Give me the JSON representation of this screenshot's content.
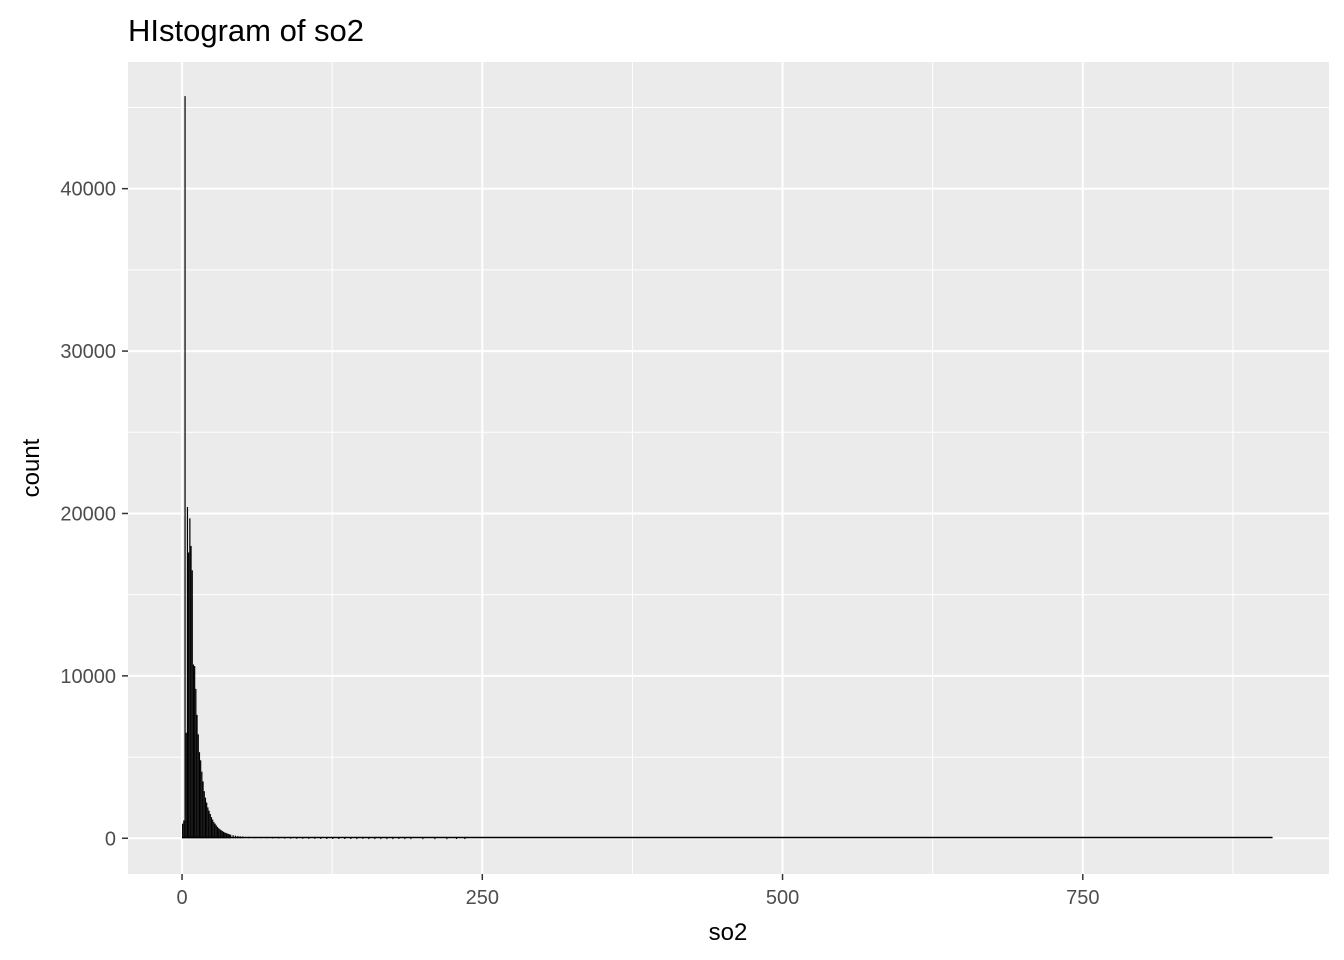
{
  "chart_data": {
    "type": "bar",
    "title": "HIstogram of so2",
    "xlabel": "so2",
    "ylabel": "count",
    "xlim": [
      -45,
      955
    ],
    "ylim": [
      -2200,
      47800
    ],
    "x_ticks": [
      0,
      250,
      500,
      750
    ],
    "x_tick_labels": [
      "0",
      "250",
      "500",
      "750"
    ],
    "y_ticks": [
      0,
      10000,
      20000,
      30000,
      40000
    ],
    "y_tick_labels": [
      "0",
      "10000",
      "20000",
      "30000",
      "40000"
    ],
    "grid": true,
    "legend": "none",
    "bin_width": 1,
    "data_range": [
      0,
      908
    ],
    "bins_x": [
      0,
      1,
      2,
      3,
      4,
      5,
      6,
      7,
      8,
      9,
      10,
      11,
      12,
      13,
      14,
      15,
      16,
      17,
      18,
      19,
      20,
      21,
      22,
      23,
      24,
      25,
      26,
      27,
      28,
      29,
      30,
      31,
      32,
      33,
      34,
      35,
      36,
      37,
      38,
      39,
      40,
      42,
      44,
      46,
      48,
      50,
      55,
      60,
      65,
      70,
      75,
      80,
      85,
      90,
      95,
      100,
      105,
      110,
      115,
      120,
      125,
      130,
      135,
      140,
      145,
      150,
      155,
      160,
      165,
      170,
      175,
      180,
      185,
      190,
      200,
      210,
      220,
      228,
      235
    ],
    "bins_count": [
      900,
      1100,
      45700,
      6500,
      20400,
      17600,
      19700,
      18000,
      16500,
      10700,
      10600,
      9200,
      7600,
      6400,
      5300,
      4800,
      4100,
      3500,
      2900,
      2500,
      2200,
      1900,
      1700,
      1500,
      1300,
      1150,
      1000,
      900,
      800,
      700,
      620,
      560,
      500,
      450,
      400,
      360,
      330,
      300,
      270,
      240,
      220,
      190,
      160,
      140,
      120,
      110,
      90,
      75,
      65,
      55,
      50,
      45,
      40,
      35,
      30,
      30,
      25,
      25,
      20,
      20,
      18,
      16,
      15,
      14,
      12,
      25,
      10,
      8,
      8,
      6,
      6,
      20,
      6,
      4,
      4,
      3,
      3,
      15,
      12
    ],
    "colors": {
      "bar_fill": "#000000",
      "panel": "#ebebeb",
      "grid": "#ffffff"
    }
  }
}
